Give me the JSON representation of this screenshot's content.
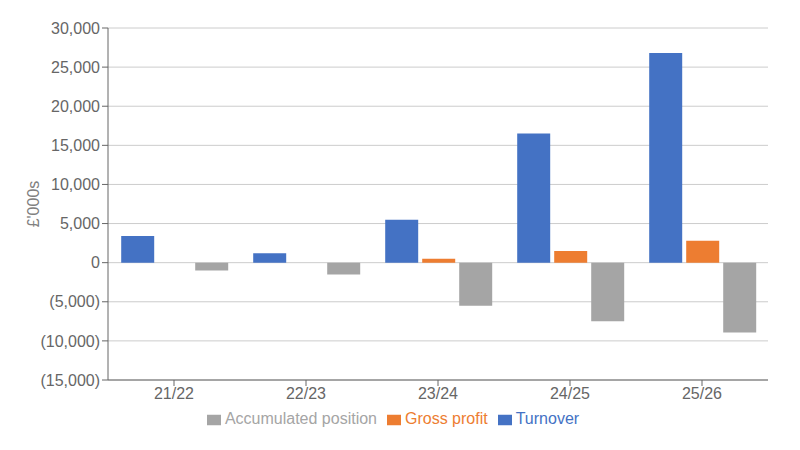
{
  "chart_data": {
    "type": "bar",
    "categories": [
      "21/22",
      "22/23",
      "23/24",
      "24/25",
      "25/26"
    ],
    "series": [
      {
        "name": "Turnover",
        "color": "#4472C4",
        "values": [
          3400,
          1200,
          5500,
          16500,
          26800
        ]
      },
      {
        "name": "Gross profit",
        "color": "#ED7D31",
        "values": [
          0,
          0,
          500,
          1500,
          2800
        ]
      },
      {
        "name": "Accumulated position",
        "color": "#A5A5A5",
        "values": [
          -1000,
          -1500,
          -5500,
          -7500,
          -8934
        ]
      }
    ],
    "ylabel": "£'000s",
    "ylim": [
      -15000,
      30000
    ],
    "yticks": [
      {
        "value": -15000,
        "label": "(15,000)"
      },
      {
        "value": -10000,
        "label": "(10,000)"
      },
      {
        "value": -5000,
        "label": "(5,000)"
      },
      0,
      {
        "value": 5000,
        "label": "5,000"
      },
      {
        "value": 10000,
        "label": "10,000"
      },
      {
        "value": 15000,
        "label": "15,000"
      },
      {
        "value": 20000,
        "label": "20,000"
      },
      {
        "value": 25000,
        "label": "25,000"
      },
      {
        "value": 30000,
        "label": "30,000"
      }
    ],
    "grid": true,
    "legend": "bottom"
  }
}
